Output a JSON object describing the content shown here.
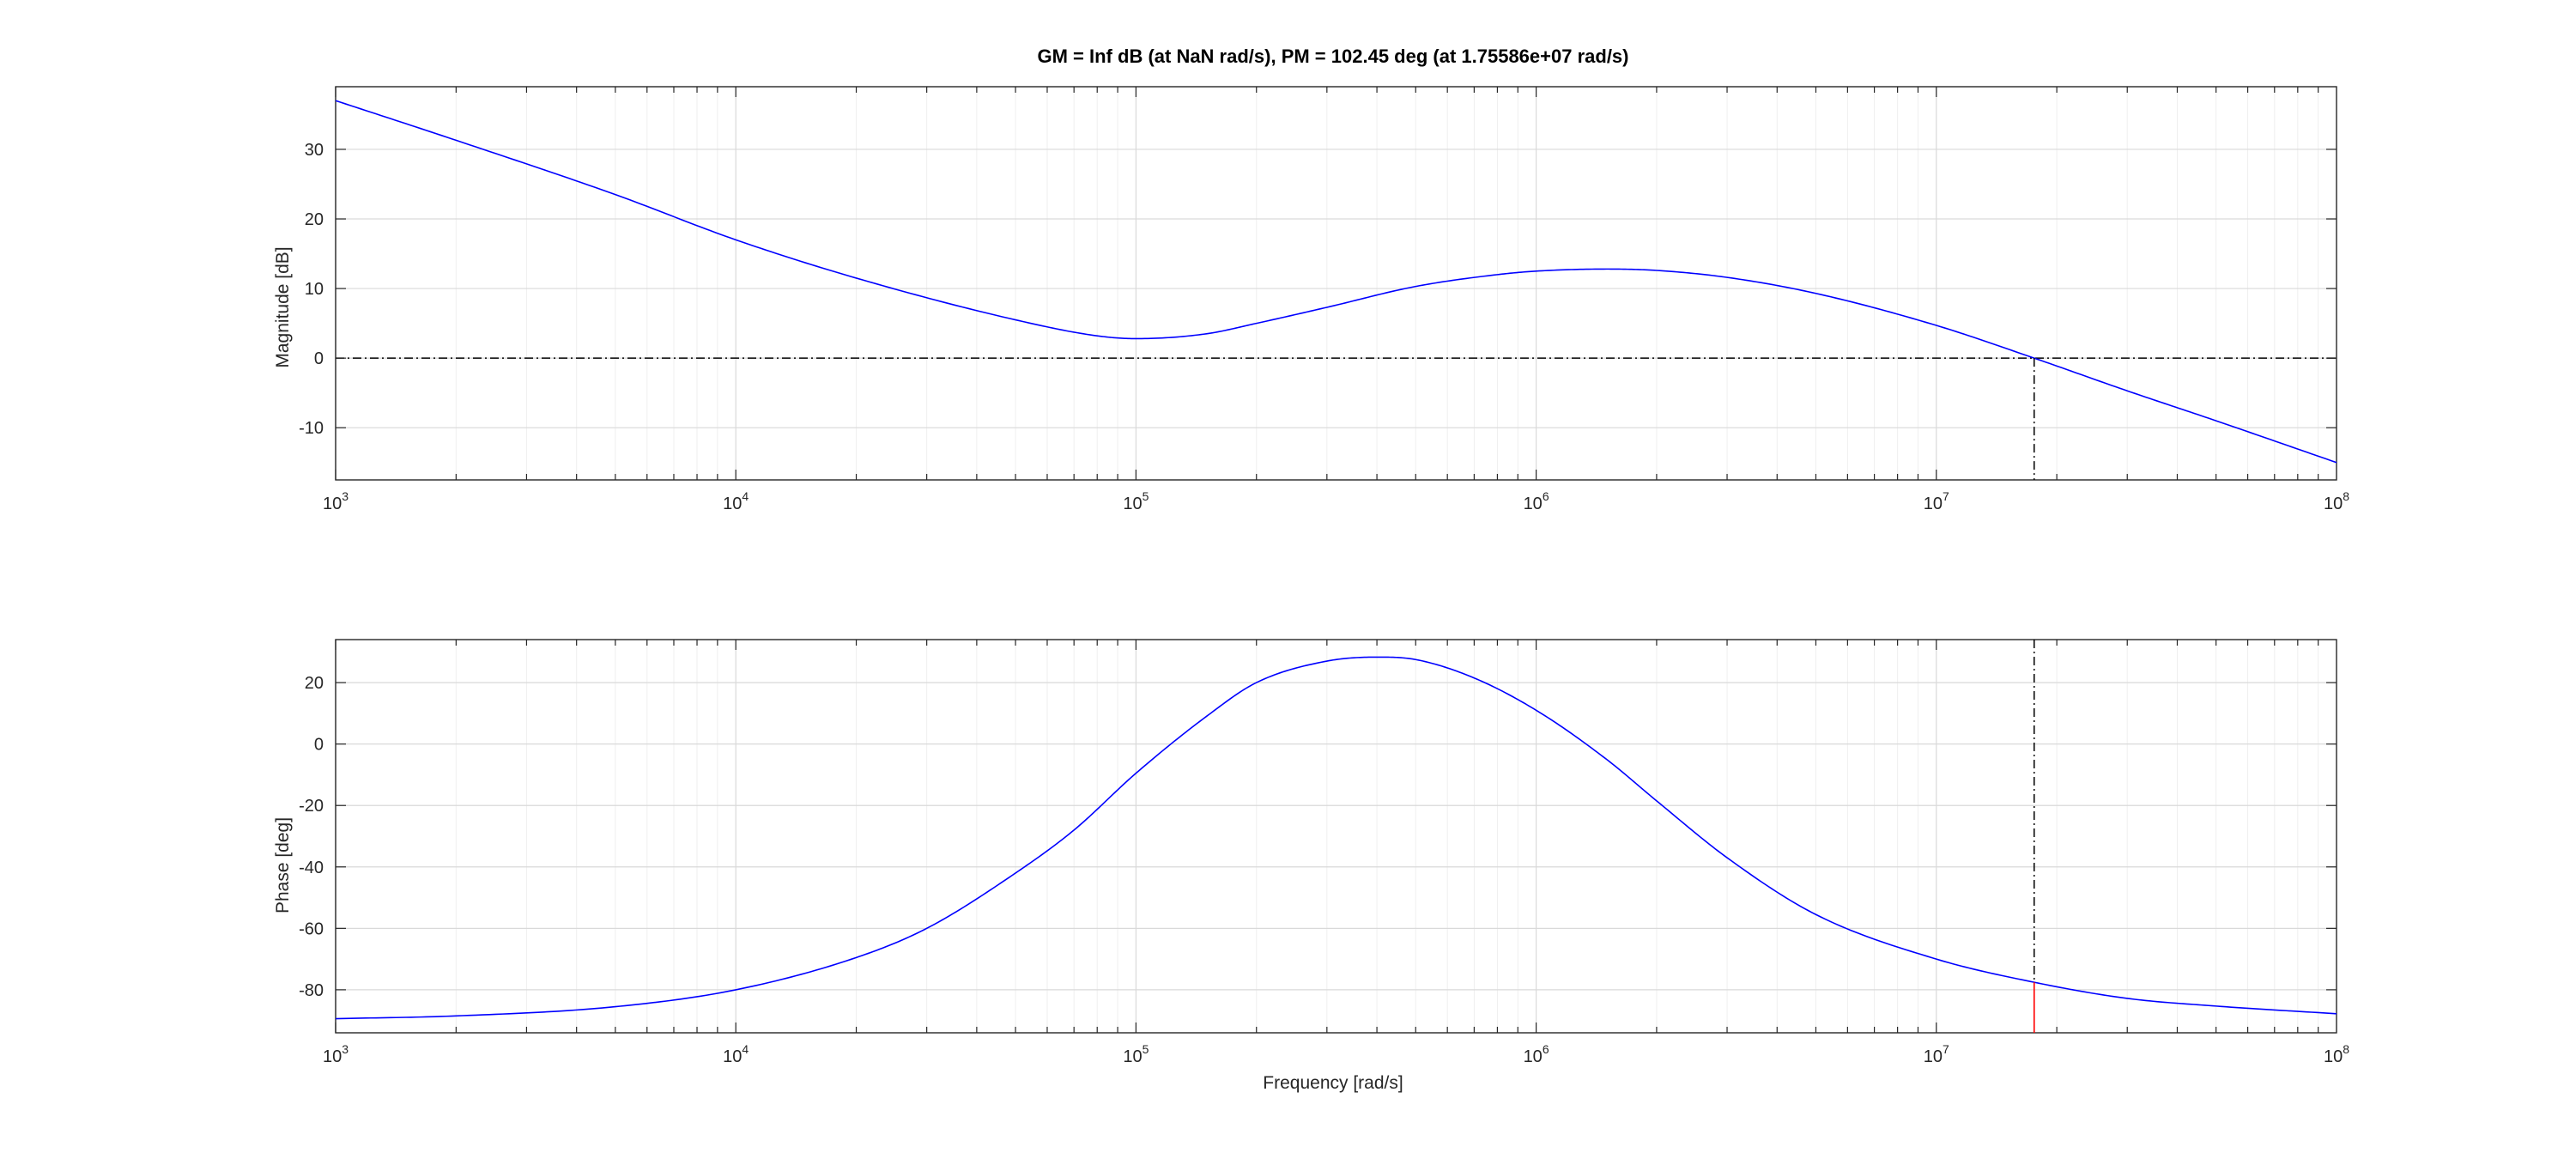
{
  "chart_data": {
    "type": "line",
    "title": "GM = Inf dB (at NaN rad/s),   PM = 102.45 deg (at 1.75586e+07 rad/s)",
    "xscale": "log",
    "xlim": [
      1000,
      100000000
    ],
    "x_ticks": [
      {
        "value": 1000,
        "base": "10",
        "exp": "3"
      },
      {
        "value": 10000,
        "base": "10",
        "exp": "4"
      },
      {
        "value": 100000,
        "base": "10",
        "exp": "5"
      },
      {
        "value": 1000000,
        "base": "10",
        "exp": "6"
      },
      {
        "value": 10000000,
        "base": "10",
        "exp": "7"
      },
      {
        "value": 100000000,
        "base": "10",
        "exp": "8"
      }
    ],
    "xlabel": "Frequency [rad/s]",
    "grid": true,
    "line_color": "#0000ff",
    "marker_color": "#000000",
    "phase_marker_color": "#ff0000",
    "crossover_frequency": 17558600,
    "plots": [
      {
        "ylabel": "Magnitude [dB]",
        "ylim": [
          -17.5,
          39
        ],
        "yticks": [
          -10,
          0,
          10,
          20,
          30
        ],
        "ytick_labels": [
          "-10",
          "0",
          "10",
          "20",
          "30"
        ],
        "reference_line": 0,
        "series": [
          {
            "x": [
              1000,
              2000,
              5000,
              10000,
              20000,
              50000,
              80000,
              100000,
              150000,
              200000,
              300000,
              500000,
              800000,
              1000000,
              1500000,
              2000000,
              3000000,
              5000000,
              10000000,
              17558600,
              30000000,
              50000000,
              100000000
            ],
            "y": [
              37.0,
              31.3,
              23.5,
              17.0,
              11.5,
              5.5,
              3.2,
              2.8,
              3.5,
              5.0,
              7.3,
              10.3,
              12.0,
              12.5,
              12.8,
              12.6,
              11.6,
              9.3,
              4.7,
              0.0,
              -4.7,
              -9.0,
              -15.0
            ]
          }
        ]
      },
      {
        "ylabel": "Phase [deg]",
        "ylim": [
          -94,
          34
        ],
        "yticks": [
          -80,
          -60,
          -40,
          -20,
          0,
          20
        ],
        "ytick_labels": [
          "-80",
          "-60",
          "-40",
          "-20",
          "0",
          "20"
        ],
        "phase_margin_marker": [
          -77.55,
          -94
        ],
        "series": [
          {
            "x": [
              1000,
              2000,
              5000,
              10000,
              20000,
              30000,
              50000,
              70000,
              100000,
              150000,
              200000,
              300000,
              400000,
              500000,
              700000,
              1000000,
              1500000,
              2000000,
              3000000,
              5000000,
              10000000,
              17558600,
              30000000,
              50000000,
              100000000
            ],
            "y": [
              -89.4,
              -88.5,
              -85.5,
              -80.0,
              -69.5,
              -60.0,
              -42.0,
              -28.0,
              -9.5,
              9.0,
              20.0,
              27.0,
              28.3,
              27.5,
              21.5,
              11.0,
              -5.0,
              -18.5,
              -37.0,
              -55.5,
              -70.0,
              -77.55,
              -82.8,
              -85.3,
              -87.8
            ]
          }
        ]
      }
    ]
  }
}
